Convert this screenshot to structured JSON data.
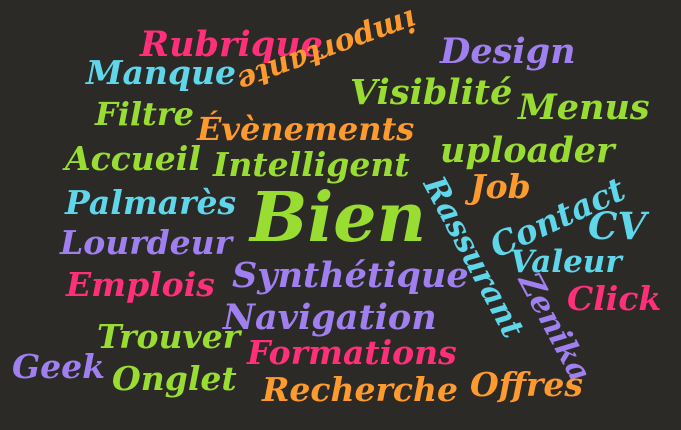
{
  "words": [
    {
      "text": "Rubrique",
      "color": "pink"
    },
    {
      "text": "Manque",
      "color": "cyan"
    },
    {
      "text": "importante",
      "color": "orange"
    },
    {
      "text": "Design",
      "color": "purple"
    },
    {
      "text": "Filtre",
      "color": "green"
    },
    {
      "text": "Évènements",
      "color": "orange"
    },
    {
      "text": "Visiblité",
      "color": "green"
    },
    {
      "text": "Menus",
      "color": "green"
    },
    {
      "text": "Accueil",
      "color": "green"
    },
    {
      "text": "Intelligent",
      "color": "green"
    },
    {
      "text": "uploader",
      "color": "green"
    },
    {
      "text": "Job",
      "color": "orange"
    },
    {
      "text": "Palmarès",
      "color": "cyan"
    },
    {
      "text": "Bien",
      "color": "green"
    },
    {
      "text": "Rassurant",
      "color": "cyan"
    },
    {
      "text": "Contact",
      "color": "cyan"
    },
    {
      "text": "CV",
      "color": "cyan"
    },
    {
      "text": "Lourdeur",
      "color": "purple"
    },
    {
      "text": "Valeur",
      "color": "cyan"
    },
    {
      "text": "Emplois",
      "color": "pink"
    },
    {
      "text": "Synthétique",
      "color": "purple"
    },
    {
      "text": "Zenika",
      "color": "purple"
    },
    {
      "text": "Click",
      "color": "pink"
    },
    {
      "text": "Navigation",
      "color": "purple"
    },
    {
      "text": "Trouver",
      "color": "green"
    },
    {
      "text": "Formations",
      "color": "pink"
    },
    {
      "text": "Geek",
      "color": "purple"
    },
    {
      "text": "Onglet",
      "color": "green"
    },
    {
      "text": "Recherche",
      "color": "orange"
    },
    {
      "text": "Offres",
      "color": "orange"
    }
  ]
}
